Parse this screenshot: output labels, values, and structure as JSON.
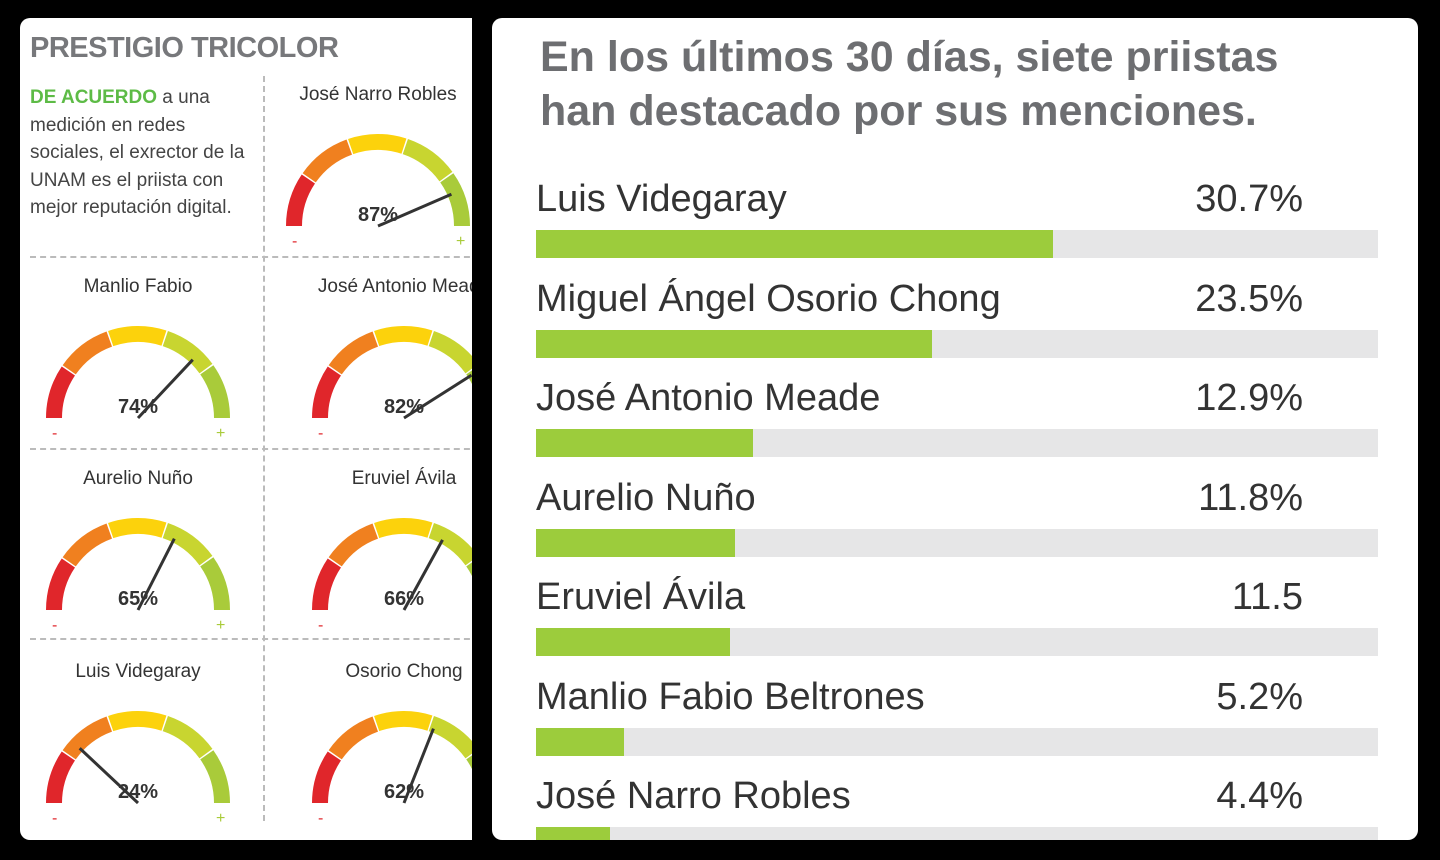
{
  "left_panel": {
    "title": "PRESTIGIO TRICOLOR",
    "intro_highlight": "DE ACUERDO",
    "intro_text": " a una medición en redes sociales, el exrector de la UNAM es el priista con mejor reputación digital.",
    "minus": "-",
    "plus": "+",
    "gauges": [
      {
        "name": "José Narro Robles",
        "value": 87,
        "label": "87%"
      },
      {
        "name": "Manlio Fabio",
        "value": 74,
        "label": "74%"
      },
      {
        "name": "José Antonio Meade",
        "value": 82,
        "label": "82%"
      },
      {
        "name": "Aurelio Nuño",
        "value": 65,
        "label": "65%"
      },
      {
        "name": "Eruviel Ávila",
        "value": 66,
        "label": "66%"
      },
      {
        "name": "Luis Videgaray",
        "value": 24,
        "label": "24%"
      },
      {
        "name": "Osorio Chong",
        "value": 62,
        "label": "62%"
      }
    ]
  },
  "colors": {
    "bar": "#9ccc3c",
    "track": "#e6e6e7",
    "red": "#e0262b",
    "orange": "#f0801f",
    "yellow": "#fcd20c",
    "lime": "#c8d530",
    "green": "#a9cb3a"
  },
  "chart_data": {
    "type": "bar",
    "title": "En los últimos 30 días, siete priistas han destacado por sus menciones.",
    "categories": [
      "Luis Videgaray",
      "Miguel Ángel Osorio Chong",
      "José Antonio Meade",
      "Aurelio Nuño",
      "Eruviel Ávila",
      "Manlio Fabio Beltrones",
      "José Narro Robles"
    ],
    "values": [
      30.7,
      23.5,
      12.9,
      11.8,
      11.5,
      5.2,
      4.4
    ],
    "labels": [
      "30.7%",
      "23.5%",
      "12.9%",
      "11.8%",
      "11.5",
      "5.2%",
      "4.4%"
    ],
    "xlim": [
      0,
      50
    ]
  }
}
